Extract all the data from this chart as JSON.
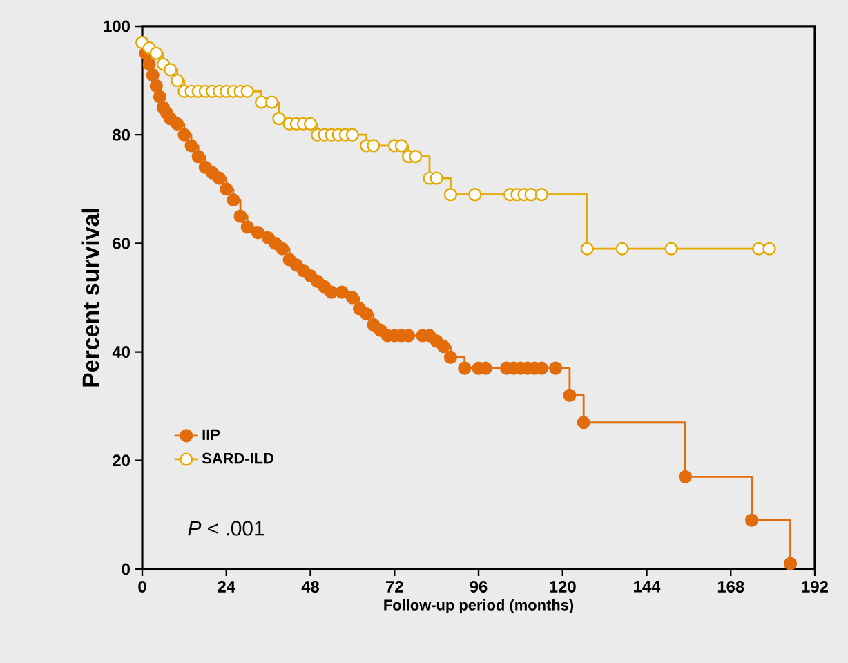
{
  "chart_data": {
    "type": "step",
    "xlabel": "Follow-up period (months)",
    "ylabel": "Percent survival",
    "xlim": [
      0,
      192
    ],
    "xticks": [
      0,
      24,
      48,
      72,
      96,
      120,
      144,
      168,
      192
    ],
    "ylim": [
      0,
      100
    ],
    "yticks": [
      0,
      20,
      40,
      60,
      80,
      100
    ],
    "grid": false,
    "legend": "bottom left",
    "marker": "circle",
    "line_style": "solid",
    "annotations": [
      "*P* < .001"
    ],
    "series": [
      {
        "name": "IIP",
        "color": "#e36c0a",
        "x": [
          0,
          1,
          2,
          3,
          4,
          5,
          6,
          7,
          8,
          10,
          12,
          14,
          16,
          18,
          20,
          22,
          24,
          26,
          28,
          30,
          33,
          36,
          38,
          40,
          42,
          44,
          46,
          48,
          50,
          52,
          54,
          57,
          60,
          62,
          64,
          66,
          68,
          70,
          72,
          74,
          76,
          80,
          82,
          84,
          86,
          88,
          92,
          96,
          98,
          104,
          106,
          108,
          110,
          112,
          114,
          118,
          122,
          126,
          155,
          174,
          185
        ],
        "values": [
          97,
          95,
          93,
          91,
          89,
          87,
          85,
          84,
          83,
          82,
          80,
          78,
          76,
          74,
          73,
          72,
          70,
          68,
          65,
          63,
          62,
          61,
          60,
          59,
          57,
          56,
          55,
          54,
          53,
          52,
          51,
          51,
          50,
          48,
          47,
          45,
          44,
          43,
          43,
          43,
          43,
          43,
          43,
          42,
          41,
          39,
          37,
          37,
          37,
          37,
          37,
          37,
          37,
          37,
          37,
          37,
          32,
          27,
          17,
          9,
          1
        ]
      },
      {
        "name": "SARD-ILD",
        "color": "#e5a800",
        "x": [
          0,
          2,
          4,
          6,
          8,
          10,
          12,
          14,
          16,
          18,
          20,
          22,
          24,
          26,
          28,
          30,
          34,
          37,
          39,
          42,
          44,
          46,
          48,
          50,
          52,
          54,
          56,
          58,
          60,
          64,
          66,
          72,
          74,
          76,
          78,
          82,
          84,
          88,
          95,
          105,
          107,
          109,
          111,
          114,
          127,
          137,
          151,
          176,
          179
        ],
        "values": [
          97,
          96,
          95,
          93,
          92,
          90,
          88,
          88,
          88,
          88,
          88,
          88,
          88,
          88,
          88,
          88,
          86,
          86,
          83,
          82,
          82,
          82,
          82,
          80,
          80,
          80,
          80,
          80,
          80,
          78,
          78,
          78,
          78,
          76,
          76,
          72,
          72,
          69,
          69,
          69,
          69,
          69,
          69,
          69,
          59,
          59,
          59,
          59,
          59
        ]
      }
    ]
  }
}
